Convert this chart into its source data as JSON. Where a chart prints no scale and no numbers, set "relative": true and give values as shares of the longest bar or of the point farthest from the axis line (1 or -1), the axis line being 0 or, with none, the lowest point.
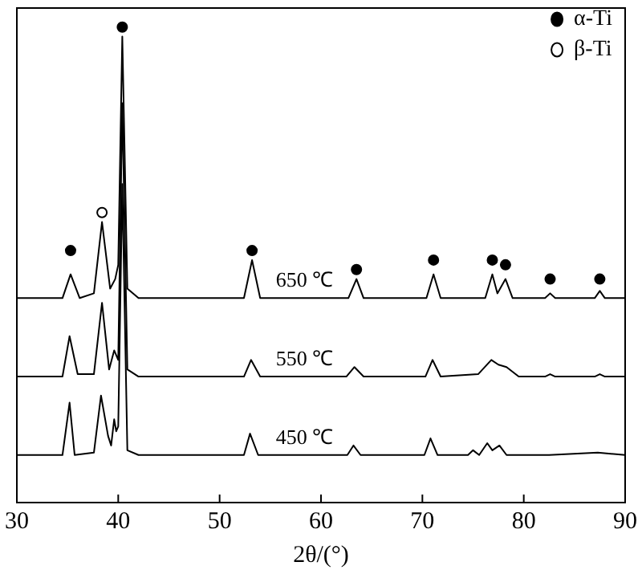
{
  "chart_data": {
    "type": "line",
    "relative": true,
    "xlabel": "2θ/(°)",
    "xlim": [
      30,
      90
    ],
    "xticks": [
      30,
      40,
      50,
      60,
      70,
      80,
      90
    ],
    "legend": "top right",
    "grid": false,
    "marker": "none",
    "series": [
      {
        "name": "650 ℃",
        "color": "#000000",
        "x": [
          30,
          34.5,
          35.3,
          36.2,
          37.6,
          38.4,
          39.2,
          39.7,
          40.0,
          40.4,
          40.9,
          42,
          52.4,
          53.2,
          54,
          62.7,
          63.5,
          64.2,
          70.4,
          71.1,
          71.8,
          76.2,
          76.9,
          77.4,
          78.2,
          78.9,
          82.1,
          82.6,
          83.1,
          87,
          87.5,
          88,
          90
        ],
        "values": [
          0.43,
          0.43,
          0.48,
          0.43,
          0.44,
          0.59,
          0.45,
          0.47,
          0.5,
          0.98,
          0.45,
          0.43,
          0.43,
          0.51,
          0.43,
          0.43,
          0.47,
          0.43,
          0.43,
          0.48,
          0.43,
          0.43,
          0.48,
          0.44,
          0.47,
          0.43,
          0.43,
          0.44,
          0.43,
          0.43,
          0.445,
          0.43,
          0.43
        ]
      },
      {
        "name": "550 ℃",
        "color": "#000000",
        "x": [
          30,
          34.5,
          35.2,
          36.0,
          37.6,
          38.4,
          39.1,
          39.6,
          40.0,
          40.4,
          40.9,
          42,
          52.4,
          53.1,
          54,
          62.5,
          63.3,
          64.2,
          70.3,
          71.0,
          71.8,
          75.5,
          76.8,
          77.5,
          78.3,
          79.5,
          82.1,
          82.6,
          83.1,
          87,
          87.5,
          88,
          90
        ],
        "values": [
          0.265,
          0.265,
          0.35,
          0.27,
          0.27,
          0.42,
          0.28,
          0.32,
          0.3,
          0.84,
          0.28,
          0.265,
          0.265,
          0.3,
          0.265,
          0.265,
          0.285,
          0.265,
          0.265,
          0.3,
          0.265,
          0.27,
          0.3,
          0.29,
          0.285,
          0.265,
          0.265,
          0.27,
          0.265,
          0.265,
          0.27,
          0.265,
          0.265
        ]
      },
      {
        "name": "450 ℃",
        "color": "#000000",
        "x": [
          30,
          34.5,
          35.2,
          35.7,
          37.6,
          38.3,
          39.0,
          39.3,
          39.6,
          39.8,
          40.0,
          40.4,
          40.9,
          42,
          52.4,
          53.0,
          53.8,
          62.6,
          63.2,
          63.9,
          70.2,
          70.8,
          71.5,
          74.5,
          75.0,
          75.6,
          76.4,
          76.9,
          77.6,
          78.3,
          82.5,
          87.3,
          90
        ],
        "values": [
          0.1,
          0.1,
          0.21,
          0.1,
          0.105,
          0.225,
          0.14,
          0.12,
          0.175,
          0.15,
          0.16,
          0.67,
          0.11,
          0.1,
          0.1,
          0.145,
          0.1,
          0.1,
          0.12,
          0.1,
          0.1,
          0.135,
          0.1,
          0.1,
          0.11,
          0.1,
          0.125,
          0.11,
          0.12,
          0.1,
          0.1,
          0.105,
          0.1
        ]
      },
      {
        "name": "α-Ti",
        "type": "scatter",
        "marker": "circle",
        "color": "#000000",
        "x": [
          35.3,
          40.4,
          53.2,
          63.5,
          71.1,
          76.9,
          78.2,
          82.6,
          87.5
        ],
        "values": [
          0.53,
          1.0,
          0.53,
          0.49,
          0.51,
          0.51,
          0.5,
          0.47,
          0.47
        ]
      },
      {
        "name": "β-Ti",
        "type": "scatter",
        "marker": "circle",
        "color": "#ffffff",
        "x": [
          38.4
        ],
        "values": [
          0.61
        ]
      }
    ]
  }
}
